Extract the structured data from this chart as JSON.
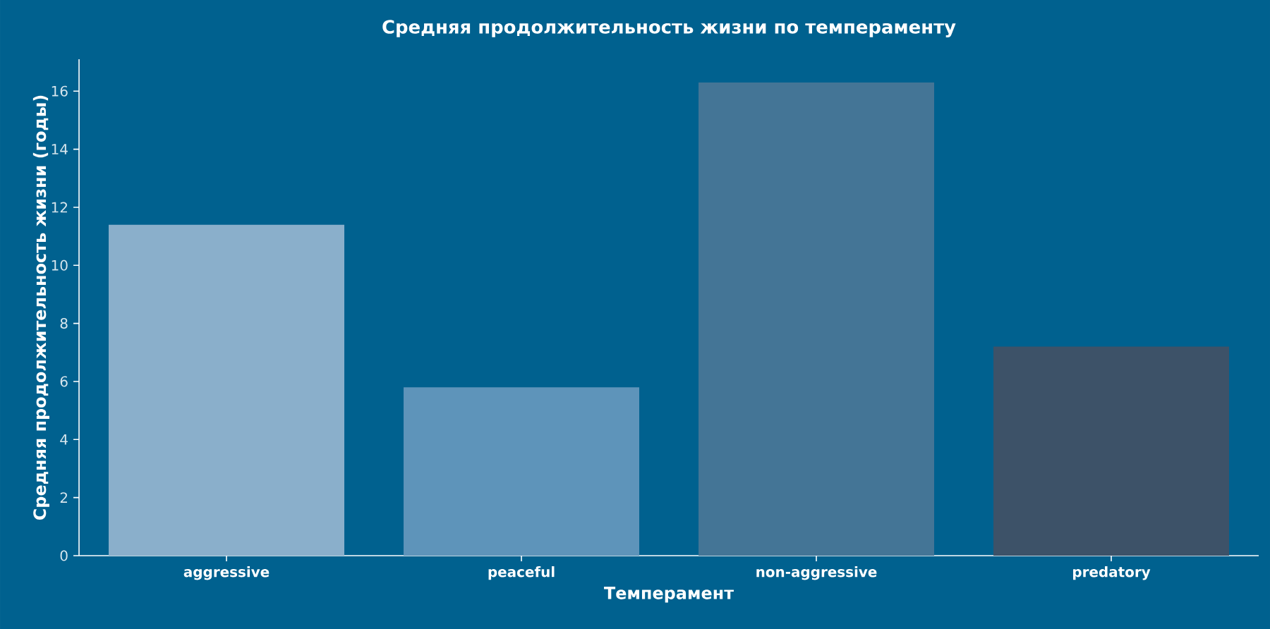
{
  "chart_data": {
    "type": "bar",
    "title": "Средняя продолжительность жизни по темпераменту",
    "xlabel": "Темперамент",
    "ylabel": "Средняя продолжительность жизни (годы)",
    "categories": [
      "aggressive",
      "peaceful",
      "non-aggressive",
      "predatory"
    ],
    "values": [
      11.4,
      5.8,
      16.3,
      7.2
    ],
    "colors": [
      "#8aafcb",
      "#5e94ba",
      "#447596",
      "#3d5268"
    ],
    "ylim": [
      0,
      17.1
    ],
    "yticks": [
      0,
      2,
      4,
      6,
      8,
      10,
      12,
      14,
      16
    ],
    "grid": false
  }
}
